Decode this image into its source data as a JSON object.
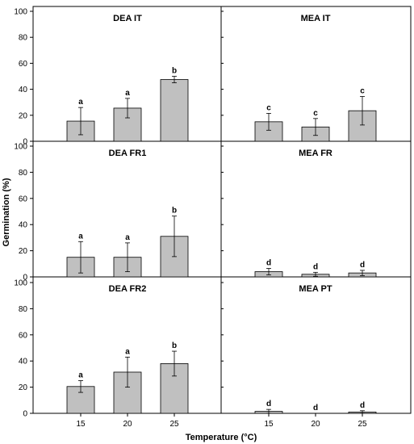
{
  "chart_data": {
    "type": "bar",
    "xlabel": "Temperature (°C)",
    "ylabel": "Germination (%)",
    "categories": [
      "15",
      "20",
      "25"
    ],
    "ylim": [
      0,
      100
    ],
    "yticks": [
      0,
      20,
      40,
      60,
      80,
      100
    ],
    "bar_color": "#c0c0c0",
    "grid": false,
    "panels": [
      {
        "title": "DEA IT",
        "values": [
          15.5,
          25.5,
          47.5
        ],
        "errors": [
          10.5,
          7.5,
          2.5
        ],
        "letters": [
          "a",
          "a",
          "b"
        ]
      },
      {
        "title": "MEA IT",
        "values": [
          15.0,
          11.0,
          23.5
        ],
        "errors": [
          6.5,
          6.5,
          11.0
        ],
        "letters": [
          "c",
          "c",
          "c"
        ]
      },
      {
        "title": "DEA FR1",
        "values": [
          15.0,
          15.0,
          31.0
        ],
        "errors": [
          12.0,
          11.0,
          15.5
        ],
        "letters": [
          "a",
          "a",
          "b"
        ]
      },
      {
        "title": "MEA FR",
        "values": [
          4.0,
          2.0,
          3.0
        ],
        "errors": [
          2.5,
          1.5,
          2.0
        ],
        "letters": [
          "d",
          "d",
          "d"
        ]
      },
      {
        "title": "DEA FR2",
        "values": [
          20.5,
          31.5,
          38.0
        ],
        "errors": [
          4.5,
          11.5,
          9.5
        ],
        "letters": [
          "a",
          "a",
          "b"
        ]
      },
      {
        "title": "MEA PT",
        "values": [
          1.5,
          0.0,
          1.0
        ],
        "errors": [
          1.5,
          0.0,
          1.0
        ],
        "letters": [
          "d",
          "d",
          "d"
        ]
      }
    ]
  }
}
